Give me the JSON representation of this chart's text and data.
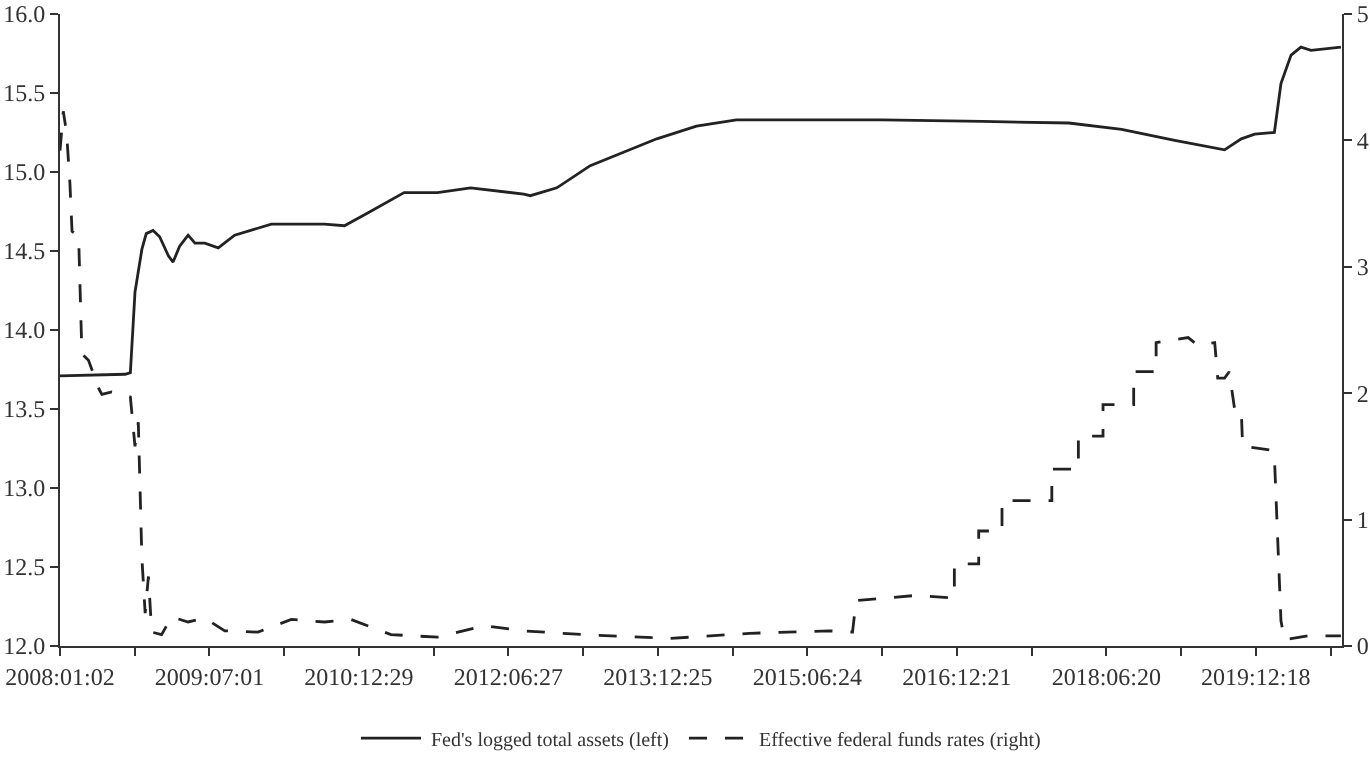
{
  "chart_data": {
    "type": "line",
    "legend": "bottom",
    "grid": false,
    "marker": "none",
    "xlim": [
      "2008-01-02",
      "2020-10-28"
    ],
    "xticks": [
      {
        "value": "2008-01-02",
        "label": "2008:01:02"
      },
      {
        "value": "2008-10-01",
        "label": null
      },
      {
        "value": "2009-07-01",
        "label": "2009:07:01"
      },
      {
        "value": "2010-03-31",
        "label": null
      },
      {
        "value": "2010-12-29",
        "label": "2010:12:29"
      },
      {
        "value": "2011-09-28",
        "label": null
      },
      {
        "value": "2012-06-27",
        "label": "2012:06:27"
      },
      {
        "value": "2013-03-27",
        "label": null
      },
      {
        "value": "2013-12-25",
        "label": "2013:12:25"
      },
      {
        "value": "2014-09-24",
        "label": null
      },
      {
        "value": "2015-06-24",
        "label": "2015:06:24"
      },
      {
        "value": "2016-03-23",
        "label": null
      },
      {
        "value": "2016-12-21",
        "label": "2016:12:21"
      },
      {
        "value": "2017-09-20",
        "label": null
      },
      {
        "value": "2018-06-20",
        "label": "2018:06:20"
      },
      {
        "value": "2019-03-20",
        "label": null
      },
      {
        "value": "2019-12-18",
        "label": "2019:12:18"
      },
      {
        "value": "2020-09-16",
        "label": null
      }
    ],
    "ylim": [
      12,
      16
    ],
    "yticks": [
      {
        "value": 12,
        "label": "12.0"
      },
      12.5,
      {
        "value": 13,
        "label": "13.0"
      },
      13.5,
      {
        "value": 14,
        "label": "14.0"
      },
      14.5,
      {
        "value": 15,
        "label": "15.0"
      },
      15.5,
      {
        "value": 16,
        "label": "16.0"
      }
    ],
    "y2lim": [
      0,
      5
    ],
    "y2ticks": [
      0,
      1,
      2,
      3,
      4,
      5
    ],
    "series": [
      {
        "name": "Fed's logged total assets (left)",
        "color": "#222222",
        "line_style": "solid",
        "x": [
          "2008-01-02",
          "2008-08-27",
          "2008-09-15",
          "2008-10-02",
          "2008-10-27",
          "2008-11-12",
          "2008-12-07",
          "2008-12-31",
          "2009-02-01",
          "2009-02-18",
          "2009-03-14",
          "2009-04-14",
          "2009-05-09",
          "2009-06-14",
          "2009-08-02",
          "2009-10-01",
          "2010-02-12",
          "2010-08-25",
          "2010-11-06",
          "2011-01-30",
          "2011-06-12",
          "2011-10-12",
          "2012-02-10",
          "2012-08-22",
          "2012-09-15",
          "2012-12-21",
          "2013-04-22",
          "2013-12-21",
          "2014-05-15",
          "2014-10-08",
          "2016-03-24",
          "2017-03-23",
          "2018-02-03",
          "2018-08-15",
          "2019-02-25",
          "2019-08-26",
          "2019-10-26",
          "2019-12-14",
          "2020-02-24",
          "2020-03-19",
          "2020-04-25",
          "2020-05-31",
          "2020-07-07",
          "2020-10-24"
        ],
        "values": [
          13.71,
          13.72,
          13.73,
          14.24,
          14.51,
          14.61,
          14.63,
          14.59,
          14.47,
          14.43,
          14.53,
          14.6,
          14.55,
          14.55,
          14.52,
          14.6,
          14.67,
          14.67,
          14.66,
          14.74,
          14.87,
          14.87,
          14.9,
          14.86,
          14.85,
          14.9,
          15.04,
          15.21,
          15.29,
          15.33,
          15.33,
          15.32,
          15.31,
          15.27,
          15.2,
          15.14,
          15.21,
          15.24,
          15.25,
          15.56,
          15.74,
          15.79,
          15.77,
          15.79
        ]
      },
      {
        "name": "Effective federal funds rates (right)",
        "color": "#222222",
        "line_style": "dashed",
        "axis": "y2",
        "x": [
          "2008-01-02",
          "2008-01-14",
          "2008-01-26",
          "2008-02-07",
          "2008-02-15",
          "2008-03-10",
          "2008-03-22",
          "2008-04-15",
          "2008-05-02",
          "2008-05-17",
          "2008-06-03",
          "2008-07-09",
          "2008-08-15",
          "2008-09-15",
          "2008-10-02",
          "2008-10-14",
          "2008-10-27",
          "2008-11-08",
          "2008-11-20",
          "2008-12-02",
          "2009-01-07",
          "2009-02-13",
          "2009-04-14",
          "2009-06-14",
          "2009-08-26",
          "2009-12-25",
          "2010-04-26",
          "2010-08-25",
          "2010-11-30",
          "2011-04-25",
          "2011-10-12",
          "2012-03-29",
          "2012-08-22",
          "2013-03-28",
          "2014-02-07",
          "2014-11-25",
          "2015-09-12",
          "2015-12-06",
          "2015-12-19",
          "2016-07-24",
          "2016-12-12",
          "2016-12-12",
          "2017-03-11",
          "2017-03-11",
          "2017-06-04",
          "2017-06-04",
          "2017-12-03",
          "2017-12-03",
          "2018-03-10",
          "2018-03-10",
          "2018-06-08",
          "2018-06-08",
          "2018-09-28",
          "2018-09-28",
          "2018-12-19",
          "2018-12-19",
          "2019-04-15",
          "2019-05-20",
          "2019-07-21",
          "2019-08-01",
          "2019-08-26",
          "2019-09-12",
          "2019-10-02",
          "2019-10-26",
          "2019-10-31",
          "2020-02-12",
          "2020-02-24",
          "2020-03-19",
          "2020-04-01",
          "2020-06-24",
          "2020-10-24"
        ],
        "values": [
          3.92,
          4.23,
          4.06,
          3.67,
          3.28,
          3.24,
          2.31,
          2.26,
          2.16,
          2.06,
          1.99,
          2.01,
          1.99,
          1.97,
          1.58,
          1.77,
          0.7,
          0.26,
          0.55,
          0.11,
          0.09,
          0.23,
          0.19,
          0.22,
          0.12,
          0.11,
          0.21,
          0.19,
          0.21,
          0.09,
          0.07,
          0.16,
          0.12,
          0.09,
          0.06,
          0.1,
          0.12,
          0.11,
          0.36,
          0.4,
          0.38,
          0.65,
          0.65,
          0.91,
          0.91,
          1.15,
          1.15,
          1.4,
          1.4,
          1.66,
          1.66,
          1.91,
          1.91,
          2.17,
          2.17,
          2.4,
          2.44,
          2.38,
          2.4,
          2.12,
          2.12,
          2.17,
          1.87,
          1.87,
          1.58,
          1.55,
          1.5,
          0.2,
          0.05,
          0.08,
          0.08
        ]
      }
    ]
  }
}
